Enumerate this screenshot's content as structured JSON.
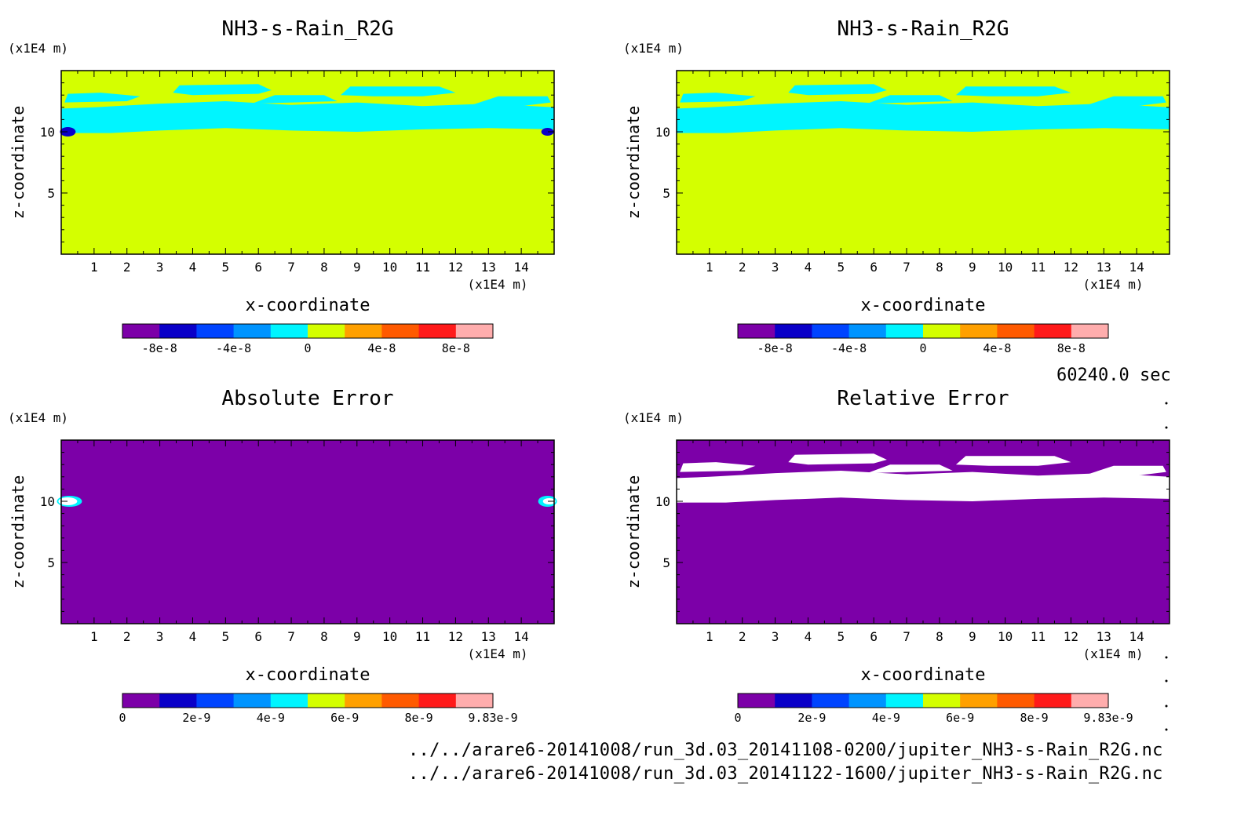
{
  "colors": {
    "purple": "#7c00a8",
    "navy": "#0a00c8",
    "blue": "#0044ff",
    "skyblue": "#0094ff",
    "cyan": "#00f5ff",
    "yellowgreen": "#d4ff00",
    "orange": "#ffa000",
    "darkorange": "#ff5a00",
    "red": "#ff1a1a",
    "pink": "#ffadad",
    "white": "#ffffff"
  },
  "time_label": "60240.0 sec",
  "footer": {
    "file1": "../../arare6-20141008/run_3d.03_20141108-0200/jupiter_NH3-s-Rain_R2G.nc",
    "file2": "../../arare6-20141008/run_3d.03_20141122-1600/jupiter_NH3-s-Rain_R2G.nc"
  },
  "chart_data": [
    {
      "type": "heatmap",
      "title": "NH3-s-Rain_R2G",
      "xlabel": "x-coordinate",
      "ylabel": "z-coordinate",
      "x_unit": "(x1E4 m)",
      "y_unit": "(x1E4 m)",
      "xlim": [
        0,
        15
      ],
      "ylim": [
        0,
        15
      ],
      "x_ticks": [
        "1",
        "2",
        "3",
        "4",
        "5",
        "6",
        "7",
        "8",
        "9",
        "10",
        "11",
        "12",
        "13",
        "14"
      ],
      "y_ticks": [
        "5",
        "10"
      ],
      "background": "yellowgreen",
      "band": "cyan",
      "colorbar": {
        "levels": [
          "purple",
          "navy",
          "blue",
          "skyblue",
          "cyan",
          "yellowgreen",
          "orange",
          "darkorange",
          "red",
          "pink"
        ],
        "labels": [
          "-8e-8",
          "-4e-8",
          "0",
          "4e-8",
          "8e-8"
        ],
        "label_positions": [
          1,
          3,
          5,
          7,
          9
        ]
      }
    },
    {
      "type": "heatmap",
      "title": "NH3-s-Rain_R2G",
      "xlabel": "x-coordinate",
      "ylabel": "z-coordinate",
      "x_unit": "(x1E4 m)",
      "y_unit": "(x1E4 m)",
      "xlim": [
        0,
        15
      ],
      "ylim": [
        0,
        15
      ],
      "x_ticks": [
        "1",
        "2",
        "3",
        "4",
        "5",
        "6",
        "7",
        "8",
        "9",
        "10",
        "11",
        "12",
        "13",
        "14"
      ],
      "y_ticks": [
        "5",
        "10"
      ],
      "background": "yellowgreen",
      "band": "cyan",
      "colorbar": {
        "levels": [
          "purple",
          "navy",
          "blue",
          "skyblue",
          "cyan",
          "yellowgreen",
          "orange",
          "darkorange",
          "red",
          "pink"
        ],
        "labels": [
          "-8e-8",
          "-4e-8",
          "0",
          "4e-8",
          "8e-8"
        ],
        "label_positions": [
          1,
          3,
          5,
          7,
          9
        ]
      }
    },
    {
      "type": "heatmap",
      "title": "Absolute Error",
      "xlabel": "x-coordinate",
      "ylabel": "z-coordinate",
      "x_unit": "(x1E4 m)",
      "y_unit": "(x1E4 m)",
      "xlim": [
        0,
        15
      ],
      "ylim": [
        0,
        15
      ],
      "x_ticks": [
        "1",
        "2",
        "3",
        "4",
        "5",
        "6",
        "7",
        "8",
        "9",
        "10",
        "11",
        "12",
        "13",
        "14"
      ],
      "y_ticks": [
        "5",
        "10"
      ],
      "background": "purple",
      "band": "none",
      "colorbar": {
        "levels": [
          "purple",
          "navy",
          "blue",
          "skyblue",
          "cyan",
          "yellowgreen",
          "orange",
          "darkorange",
          "red",
          "pink"
        ],
        "labels": [
          "0",
          "2e-9",
          "4e-9",
          "6e-9",
          "8e-9",
          "9.83e-9"
        ],
        "label_positions": [
          0,
          2,
          4,
          6,
          8,
          10
        ]
      }
    },
    {
      "type": "heatmap",
      "title": "Relative Error",
      "xlabel": "x-coordinate",
      "ylabel": "z-coordinate",
      "x_unit": "(x1E4 m)",
      "y_unit": "(x1E4 m)",
      "xlim": [
        0,
        15
      ],
      "ylim": [
        0,
        15
      ],
      "x_ticks": [
        "1",
        "2",
        "3",
        "4",
        "5",
        "6",
        "7",
        "8",
        "9",
        "10",
        "11",
        "12",
        "13",
        "14"
      ],
      "y_ticks": [
        "5",
        "10"
      ],
      "background": "purple",
      "band": "white",
      "colorbar": {
        "levels": [
          "purple",
          "navy",
          "blue",
          "skyblue",
          "cyan",
          "yellowgreen",
          "orange",
          "darkorange",
          "red",
          "pink"
        ],
        "labels": [
          "0",
          "2e-9",
          "4e-9",
          "6e-9",
          "8e-9",
          "9.83e-9"
        ],
        "label_positions": [
          0,
          2,
          4,
          6,
          8,
          10
        ]
      }
    }
  ]
}
